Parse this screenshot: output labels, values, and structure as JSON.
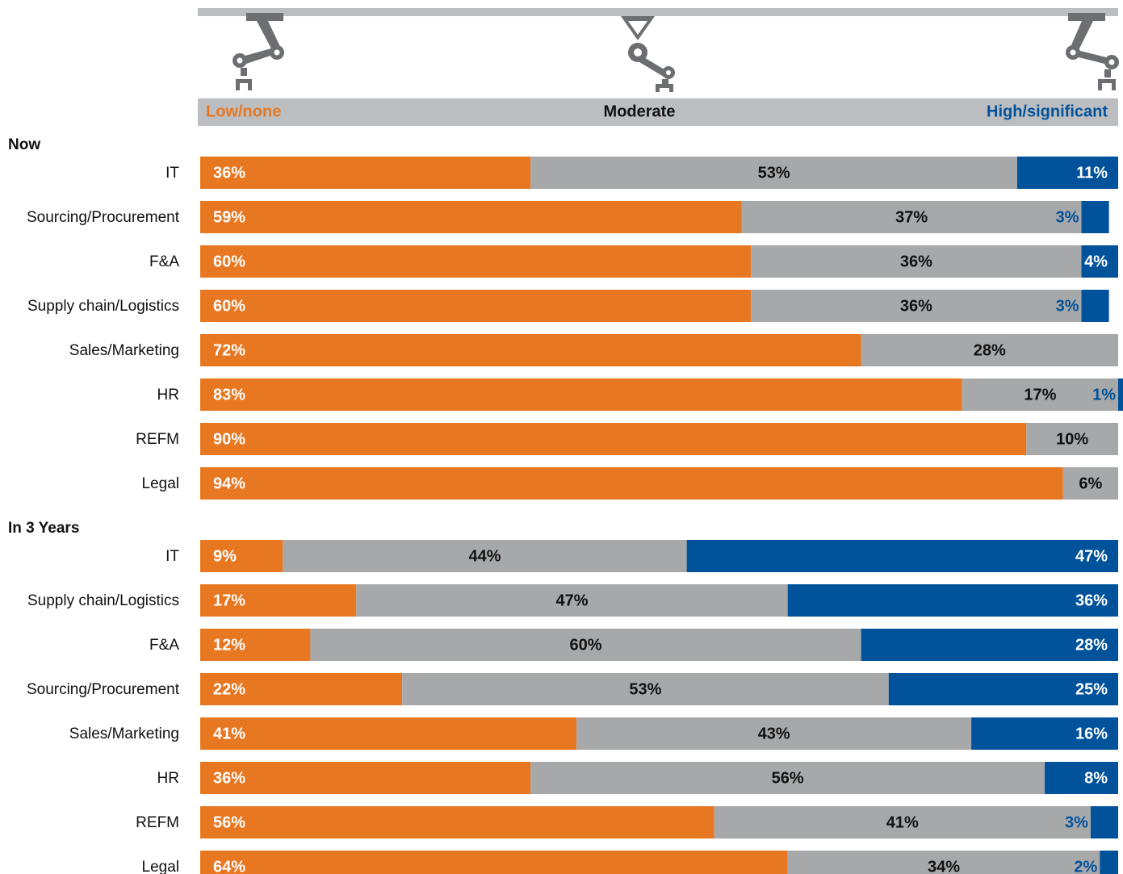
{
  "chart_data": {
    "type": "bar",
    "orientation": "horizontal",
    "stacked": true,
    "xlim": [
      0,
      100
    ],
    "series": [
      {
        "name": "Low/none",
        "color": "#e87722"
      },
      {
        "name": "Moderate",
        "color": "#a7a8aa"
      },
      {
        "name": "High/significant",
        "color": "#00529b"
      }
    ],
    "groups": [
      {
        "title": "Now",
        "categories": [
          "IT",
          "Sourcing/Procurement",
          "F&A",
          "Supply chain/Logistics",
          "Sales/Marketing",
          "HR",
          "REFM",
          "Legal"
        ],
        "values": [
          [
            36,
            53,
            11
          ],
          [
            59,
            37,
            3
          ],
          [
            60,
            36,
            4
          ],
          [
            60,
            36,
            3
          ],
          [
            72,
            28,
            null
          ],
          [
            83,
            17,
            1
          ],
          [
            90,
            10,
            null
          ],
          [
            94,
            6,
            null
          ]
        ],
        "value_labels": [
          [
            "36%",
            "53%",
            "11%"
          ],
          [
            "59%",
            "37%",
            "3%"
          ],
          [
            "60%",
            "36%",
            "4%"
          ],
          [
            "60%",
            "36%",
            "3%"
          ],
          [
            "72%",
            "28%",
            null
          ],
          [
            "83%",
            "17%",
            "1%"
          ],
          [
            "90%",
            "10%",
            null
          ],
          [
            "94%",
            "6%",
            null
          ]
        ]
      },
      {
        "title": "In 3 Years",
        "categories": [
          "IT",
          "Supply chain/Logistics",
          "F&A",
          "Sourcing/Procurement",
          "Sales/Marketing",
          "HR",
          "REFM",
          "Legal"
        ],
        "values": [
          [
            9,
            44,
            47
          ],
          [
            17,
            47,
            36
          ],
          [
            12,
            60,
            28
          ],
          [
            22,
            53,
            25
          ],
          [
            41,
            43,
            16
          ],
          [
            36,
            56,
            8
          ],
          [
            56,
            41,
            3
          ],
          [
            64,
            34,
            2
          ]
        ],
        "value_labels": [
          [
            "9%",
            "44%",
            "47%"
          ],
          [
            "17%",
            "47%",
            "36%"
          ],
          [
            "12%",
            "60%",
            "28%"
          ],
          [
            "22%",
            "53%",
            "25%"
          ],
          [
            "41%",
            "43%",
            "16%"
          ],
          [
            "36%",
            "56%",
            "8%"
          ],
          [
            "56%",
            "41%",
            "3%"
          ],
          [
            "64%",
            "34%",
            "2%"
          ]
        ]
      }
    ]
  }
}
